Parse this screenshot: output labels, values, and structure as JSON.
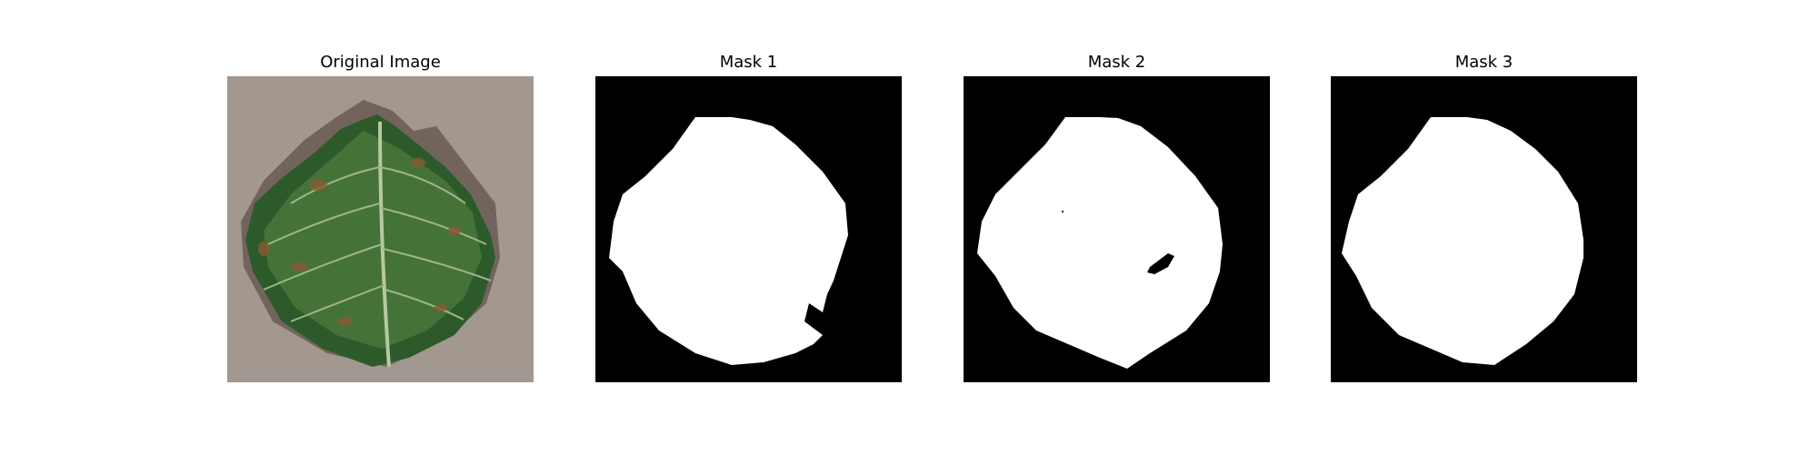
{
  "figure": {
    "panels": [
      {
        "id": "original",
        "title": "Original Image"
      },
      {
        "id": "mask1",
        "title": "Mask 1"
      },
      {
        "id": "mask2",
        "title": "Mask 2"
      },
      {
        "id": "mask3",
        "title": "Mask 3"
      }
    ],
    "colors": {
      "background": "#a39890",
      "leaf_dark": "#2d5a2a",
      "leaf_light": "#5d8b43",
      "vein": "#b7c9a0",
      "lesion": "#8a5a35",
      "mask_bg": "#000000",
      "mask_fg": "#ffffff"
    }
  }
}
